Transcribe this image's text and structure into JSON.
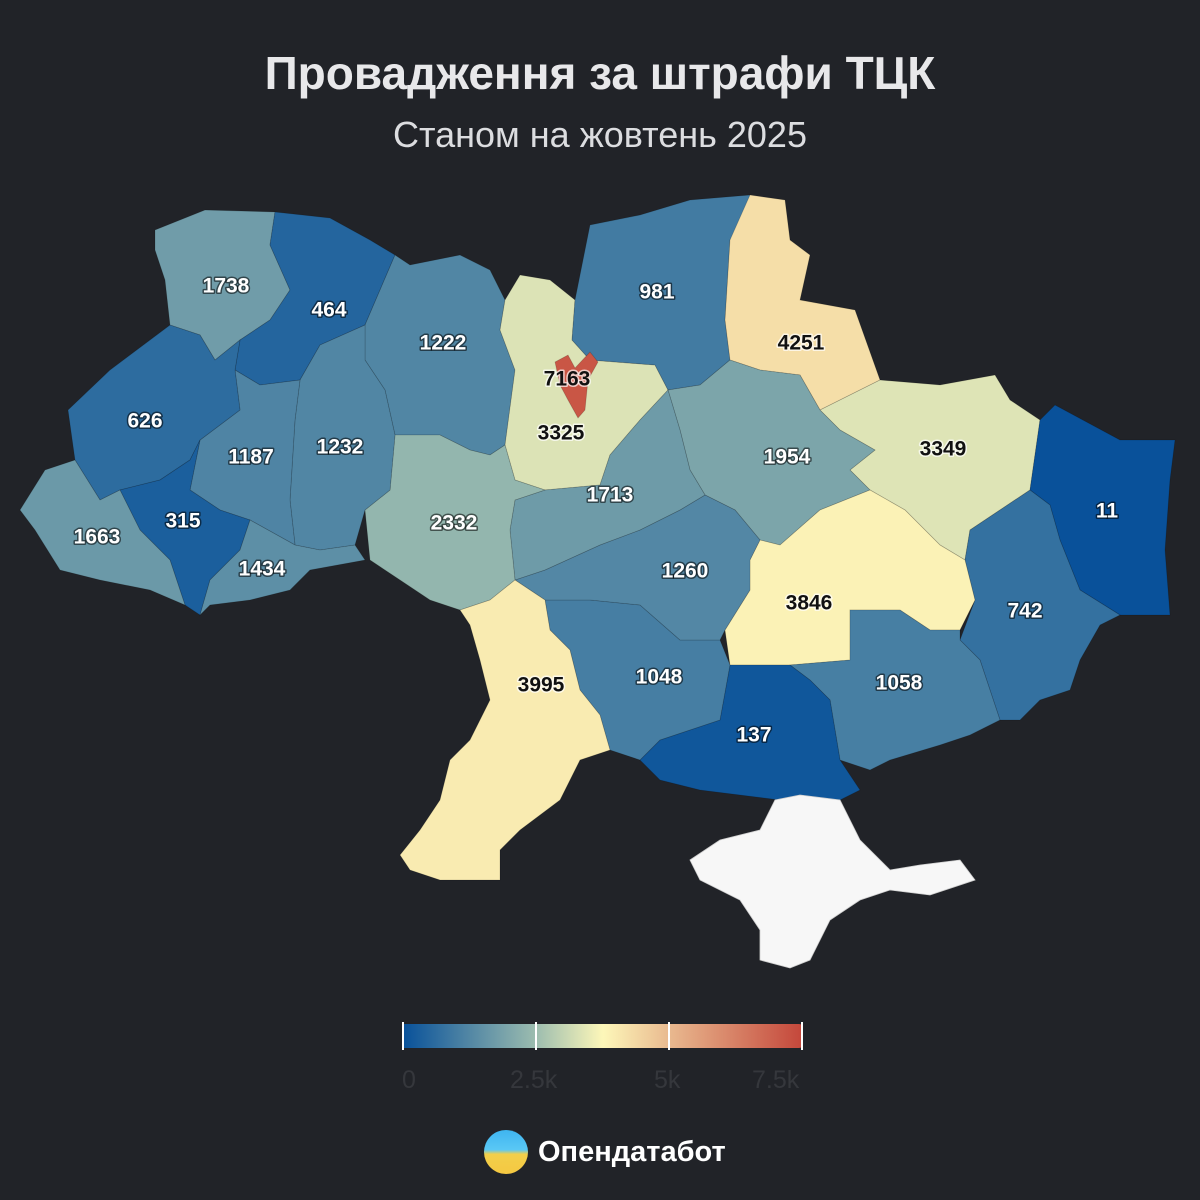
{
  "header": {
    "title": "Провадження за штрафи ТЦК",
    "subtitle": "Станом на жовтень 2025"
  },
  "chart_data": {
    "type": "choropleth",
    "title": "Провадження за штрафи ТЦК",
    "subtitle": "Станом на жовтень 2025",
    "color_scale": {
      "domain": [
        0,
        2500,
        3750,
        5000,
        7500
      ],
      "colors": [
        "#08519a",
        "#9dbdaf",
        "#fdf7b9",
        "#e9b98f",
        "#c4463a"
      ],
      "no_data_color": "#f7f7f7"
    },
    "legend": {
      "ticks": [
        "0",
        "2.5k",
        "5k",
        "7.5k"
      ],
      "placement": "bottom"
    },
    "regions": [
      {
        "id": "volyn",
        "value": 1738
      },
      {
        "id": "rivne",
        "value": 464
      },
      {
        "id": "zhytomyr",
        "value": 1222
      },
      {
        "id": "kyiv-oblast",
        "value": 3325
      },
      {
        "id": "kyiv-city",
        "value": 7163
      },
      {
        "id": "chernihiv",
        "value": 981
      },
      {
        "id": "sumy",
        "value": 4251
      },
      {
        "id": "kharkiv",
        "value": 3349
      },
      {
        "id": "luhansk",
        "value": 11
      },
      {
        "id": "donetsk",
        "value": 742
      },
      {
        "id": "poltava",
        "value": 1954
      },
      {
        "id": "dnipro",
        "value": 3846
      },
      {
        "id": "zaporizhzhia",
        "value": 1058
      },
      {
        "id": "kherson",
        "value": 137
      },
      {
        "id": "mykolaiv",
        "value": 1048
      },
      {
        "id": "kirovohrad",
        "value": 1260
      },
      {
        "id": "cherkasy",
        "value": 1713
      },
      {
        "id": "vinnytsia",
        "value": 2332
      },
      {
        "id": "odesa",
        "value": 3995
      },
      {
        "id": "khmelnytskyi",
        "value": 1232
      },
      {
        "id": "ternopil",
        "value": 1187
      },
      {
        "id": "lviv",
        "value": 626
      },
      {
        "id": "ivano-frankivsk",
        "value": 315
      },
      {
        "id": "zakarpattia",
        "value": 1663
      },
      {
        "id": "chernivtsi",
        "value": 1434
      },
      {
        "id": "crimea",
        "value": null
      }
    ]
  },
  "footer": {
    "brand": "Опендатабот"
  }
}
